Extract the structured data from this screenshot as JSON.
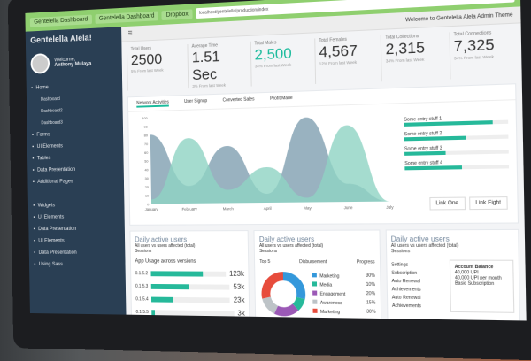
{
  "browser": {
    "url": "localhost/gentelella/production/index",
    "tabs": [
      "Gentelella Dashboard",
      "Gentelella Dashboard",
      "Dropbox"
    ]
  },
  "sidebar": {
    "brand": "Gentelella Alela!",
    "welcome": "Welcome,",
    "user": "Anthony Mulaya",
    "items": [
      {
        "label": "Home",
        "icon": "home-icon"
      },
      {
        "label": "Dashboard",
        "sub": true
      },
      {
        "label": "Dashboard2",
        "sub": true
      },
      {
        "label": "Dashboard3",
        "sub": true
      },
      {
        "label": "Forms",
        "icon": "edit-icon"
      },
      {
        "label": "UI Elements",
        "icon": "desktop-icon"
      },
      {
        "label": "Tables",
        "icon": "table-icon"
      },
      {
        "label": "Data Presentation",
        "icon": "chart-icon"
      },
      {
        "label": "Additional Pages",
        "icon": "clone-icon"
      },
      {
        "label": "Widgets",
        "icon": "widget-icon"
      },
      {
        "label": "UI Elements",
        "icon": "desktop-icon"
      },
      {
        "label": "Data Presentation",
        "icon": "chart-icon"
      },
      {
        "label": "UI Elements",
        "icon": "desktop-icon"
      },
      {
        "label": "Data Presentation",
        "icon": "chart-icon"
      },
      {
        "label": "Using Sass",
        "icon": "code-icon"
      }
    ]
  },
  "header": {
    "welcome": "Welcome to Gentelella Alela Admin Theme"
  },
  "stats": [
    {
      "label": "Total Users",
      "value": "2500",
      "sub": "5% From last Week",
      "color": "#333"
    },
    {
      "label": "Average Time",
      "value": "1.51 Sec",
      "sub": "3% From last Week",
      "color": "#333"
    },
    {
      "label": "Total Males",
      "value": "2,500",
      "sub": "34% From last Week",
      "color": "#1abb9c"
    },
    {
      "label": "Total Females",
      "value": "4,567",
      "sub": "12% From last Week",
      "color": "#333"
    },
    {
      "label": "Total Collections",
      "value": "2,315",
      "sub": "34% From last Week",
      "color": "#333"
    },
    {
      "label": "Total Connections",
      "value": "7,325",
      "sub": "34% From last Week",
      "color": "#333"
    }
  ],
  "chart_tabs": [
    "Network Activities",
    "User Signup",
    "Converted Sales",
    "Profit Made"
  ],
  "chart_data": {
    "type": "area",
    "x": [
      "January",
      "February",
      "March",
      "April",
      "May",
      "June",
      "July"
    ],
    "ylim": [
      0,
      100
    ],
    "yticks": [
      0,
      10,
      20,
      30,
      40,
      50,
      60,
      70,
      80,
      90,
      100
    ],
    "series": [
      {
        "values": [
          80,
          20,
          65,
          10,
          95,
          20,
          0
        ],
        "color": "#7f9fb0"
      },
      {
        "values": [
          5,
          75,
          15,
          40,
          5,
          85,
          0
        ],
        "color": "#8fd3c3"
      }
    ]
  },
  "progress": [
    {
      "label": "Some entry stuff 1",
      "value": 85
    },
    {
      "label": "Some entry stuff 2",
      "value": 60
    },
    {
      "label": "Some entry stuff 3",
      "value": 40
    },
    {
      "label": "Some entry stuff 4",
      "value": 55
    }
  ],
  "links": [
    "Link One",
    "Link Eight"
  ],
  "cards": [
    {
      "title": "Daily active users",
      "note": "All users vs users affected (total)",
      "sub": "Sessions",
      "heading": "App Usage across versions",
      "bars": [
        {
          "label": "0.1.5.2",
          "value": "123k",
          "pct": 70
        },
        {
          "label": "0.1.5.3",
          "value": "53k",
          "pct": 48
        },
        {
          "label": "0.1.5.4",
          "value": "23k",
          "pct": 28
        },
        {
          "label": "0.1.5.5",
          "value": "3k",
          "pct": 4
        }
      ]
    },
    {
      "title": "Daily active users",
      "note": "All users vs users affected (total)",
      "sub": "Sessions",
      "top": "Top 5",
      "cols": [
        "Disbursement",
        "Progress"
      ],
      "legend": [
        {
          "label": "Marketing",
          "value": "30%",
          "color": "#3498db"
        },
        {
          "label": "Media",
          "value": "10%",
          "color": "#26b99a"
        },
        {
          "label": "Engagement",
          "value": "20%",
          "color": "#9b59b6"
        },
        {
          "label": "Awareness",
          "value": "15%",
          "color": "#bdc3c7"
        },
        {
          "label": "Marketing",
          "value": "30%",
          "color": "#e74c3c"
        }
      ]
    },
    {
      "title": "Daily active users",
      "note": "All users vs users affected (total)",
      "sub": "Sessions",
      "list": [
        "Settings",
        "Subscription",
        "Auto Renewal",
        "Achievements",
        "Auto Renewal",
        "Achievements"
      ],
      "balance": {
        "title": "Account Balance",
        "lines": [
          "40,000 UPI",
          "40,000 UPI per month",
          "Basic Subscription"
        ]
      }
    }
  ]
}
